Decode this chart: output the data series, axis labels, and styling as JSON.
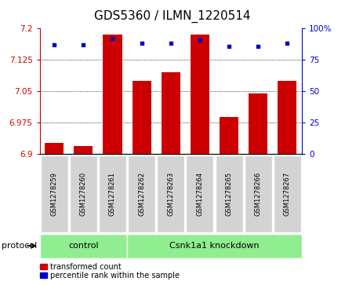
{
  "title": "GDS5360 / ILMN_1220514",
  "samples": [
    "GSM1278259",
    "GSM1278260",
    "GSM1278261",
    "GSM1278262",
    "GSM1278263",
    "GSM1278264",
    "GSM1278265",
    "GSM1278266",
    "GSM1278267"
  ],
  "bar_values": [
    6.927,
    6.918,
    7.185,
    7.075,
    7.095,
    7.185,
    6.988,
    7.045,
    7.075
  ],
  "percentile_values": [
    87,
    87,
    92,
    88,
    88,
    91,
    86,
    86,
    88
  ],
  "ylim_left": [
    6.9,
    7.2
  ],
  "ylim_right": [
    0,
    100
  ],
  "yticks_left": [
    6.9,
    6.975,
    7.05,
    7.125,
    7.2
  ],
  "yticks_right": [
    0,
    25,
    50,
    75,
    100
  ],
  "bar_color": "#cc0000",
  "dot_color": "#0000cc",
  "control_label": "control",
  "knockdown_label": "Csnk1a1 knockdown",
  "protocol_label": "protocol",
  "control_color": "#90ee90",
  "knockdown_color": "#90ee90",
  "legend_bar_label": "transformed count",
  "legend_dot_label": "percentile rank within the sample",
  "title_fontsize": 11,
  "tick_fontsize": 7.5,
  "label_fontsize": 8,
  "n_control": 3,
  "n_knockdown": 6
}
